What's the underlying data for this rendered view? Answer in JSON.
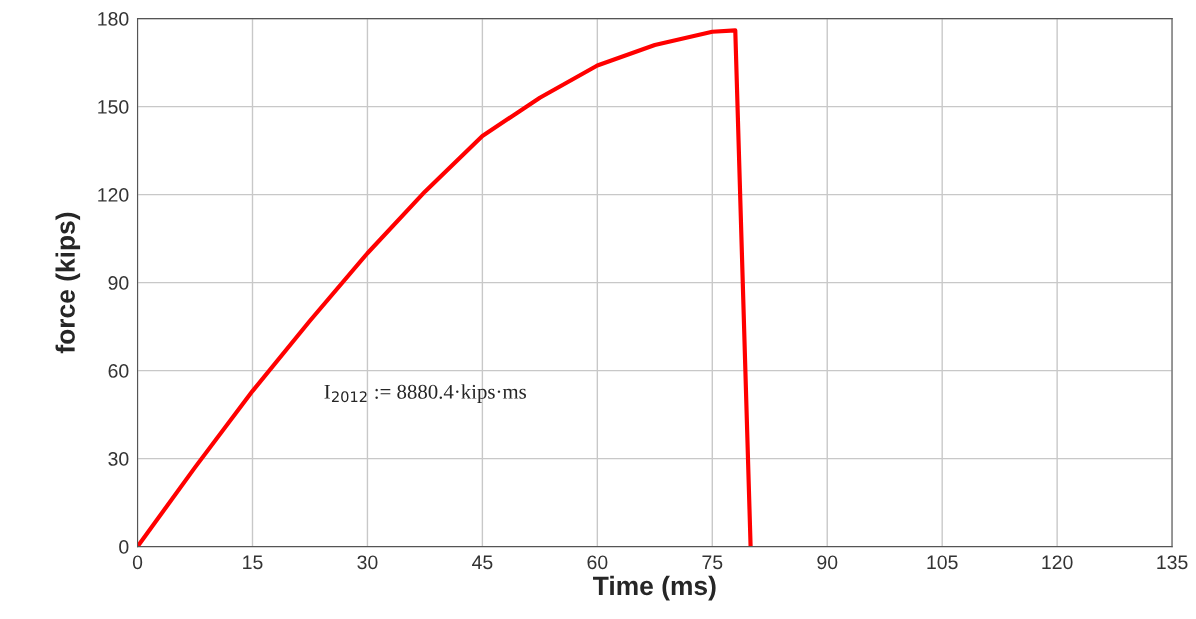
{
  "chart_data": {
    "type": "line",
    "xlabel": "Time (ms)",
    "ylabel": "force (kips)",
    "x": [
      0,
      7.5,
      15,
      22.5,
      30,
      37.5,
      45,
      52.5,
      60,
      67.5,
      75,
      78,
      80
    ],
    "series": [
      {
        "color": "#ff0000",
        "values": [
          0,
          27,
          53,
          77,
          100,
          121,
          140,
          153,
          164,
          171,
          175.5,
          176,
          0
        ]
      }
    ],
    "xlim": [
      0,
      135
    ],
    "xticks": [
      0,
      15,
      30,
      45,
      60,
      75,
      90,
      105,
      120,
      135
    ],
    "ylim": [
      0,
      180
    ],
    "yticks": [
      0,
      30,
      60,
      90,
      120,
      150,
      180
    ],
    "grid": true,
    "legend": false,
    "marker": "none",
    "line_style": "solid",
    "annotations": [
      "I$_{2012}$ := 8880.4·kips·ms"
    ]
  }
}
